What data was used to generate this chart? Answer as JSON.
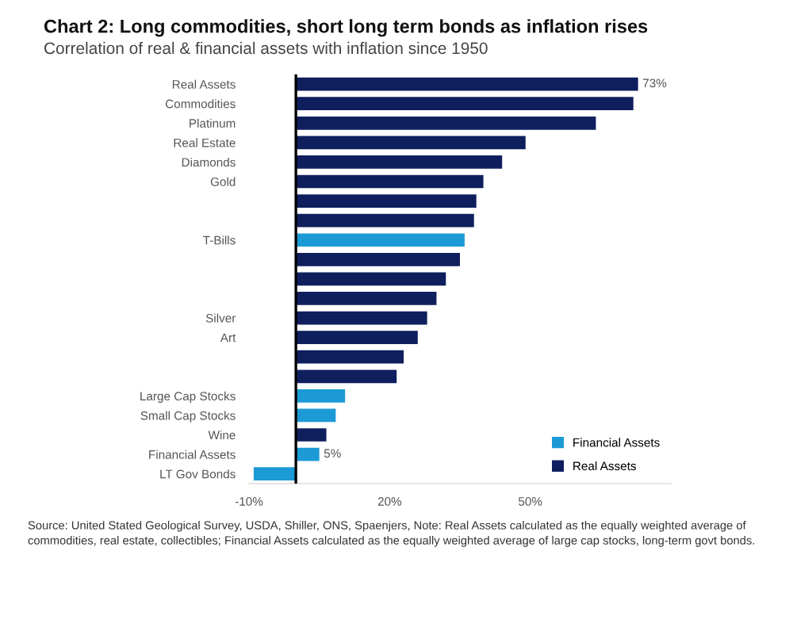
{
  "chart_data": {
    "type": "bar",
    "orientation": "horizontal",
    "title": "Chart 2: Long commodities, short long term bonds as inflation rises",
    "subtitle": "Correlation of real & financial assets with inflation since 1950",
    "categories": [
      "Real Assets",
      "Commodities",
      "Platinum",
      "Real Estate",
      "Diamonds",
      "Gold",
      null,
      null,
      "T-Bills",
      null,
      null,
      null,
      "Silver",
      "Art",
      null,
      null,
      "Large Cap Stocks",
      "Small Cap Stocks",
      "Wine",
      "Financial Assets",
      "LT Gov Bonds"
    ],
    "series": [
      {
        "name": "Financial Assets",
        "color": "#1b9ad6",
        "values": [
          null,
          null,
          null,
          null,
          null,
          null,
          null,
          null,
          36,
          null,
          null,
          null,
          null,
          null,
          null,
          null,
          10.5,
          8.5,
          null,
          5,
          -9
        ],
        "value_labels": [
          null,
          null,
          null,
          null,
          null,
          null,
          null,
          null,
          null,
          null,
          null,
          null,
          null,
          null,
          null,
          null,
          null,
          null,
          null,
          "5%",
          null
        ]
      },
      {
        "name": "Real Assets",
        "color": "#0f1f5e",
        "values": [
          73,
          72,
          64,
          49,
          44,
          40,
          38.5,
          38,
          null,
          35,
          32,
          30,
          28,
          26,
          23,
          21.5,
          null,
          null,
          6.5,
          null,
          null
        ],
        "value_labels": [
          "73%",
          null,
          null,
          null,
          null,
          null,
          null,
          null,
          null,
          null,
          null,
          null,
          null,
          null,
          null,
          null,
          null,
          null,
          null,
          null,
          null
        ]
      }
    ],
    "xlim": [
      -10,
      80
    ],
    "xticks": [
      {
        "value": -10,
        "label": "-10%"
      },
      {
        "value": 20,
        "label": "20%"
      },
      {
        "value": 50,
        "label": "50%"
      }
    ],
    "ref_lines": [
      {
        "axis": "x",
        "value": 0,
        "color": "#000000"
      }
    ],
    "legend": "lower right",
    "grid": false,
    "annotations": [
      "Source: United Stated Geological Survey, USDA, Shiller, ONS, Spaenjers, Note: Real Assets calculated as the equally weighted average of commodities, real estate, collectibles; Financial Assets calculated as the equally weighted average of large cap stocks, long-term govt bonds."
    ]
  }
}
